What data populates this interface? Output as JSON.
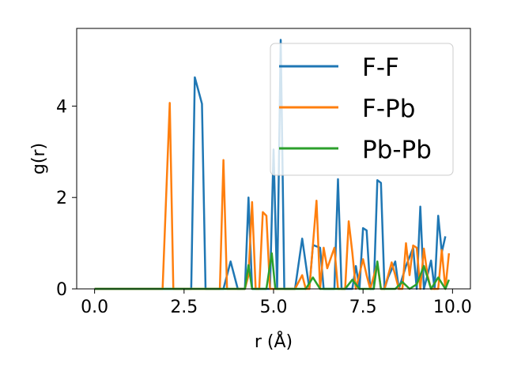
{
  "chart_data": {
    "type": "line",
    "title": "",
    "xlabel": "r (Å)",
    "ylabel": "g(r)",
    "xlim": [
      -0.5,
      10.5
    ],
    "ylim": [
      0,
      5.7
    ],
    "xticks": [
      0.0,
      2.5,
      5.0,
      7.5,
      10.0
    ],
    "xtick_labels": [
      "0.0",
      "2.5",
      "5.0",
      "7.5",
      "10.0"
    ],
    "yticks": [
      0,
      2,
      4
    ],
    "ytick_labels": [
      "0",
      "2",
      "4"
    ],
    "grid": false,
    "legend": "top-right",
    "series": [
      {
        "name": "F-F",
        "color": "#1f77b4",
        "points": [
          [
            0.0,
            0
          ],
          [
            2.7,
            0
          ],
          [
            2.8,
            4.63
          ],
          [
            3.0,
            4.05
          ],
          [
            3.1,
            0
          ],
          [
            3.6,
            0
          ],
          [
            3.8,
            0.6
          ],
          [
            4.0,
            0
          ],
          [
            4.2,
            0
          ],
          [
            4.3,
            2.0
          ],
          [
            4.4,
            0
          ],
          [
            4.9,
            0
          ],
          [
            5.0,
            3.05
          ],
          [
            5.1,
            0
          ],
          [
            5.2,
            5.45
          ],
          [
            5.3,
            0
          ],
          [
            5.6,
            0
          ],
          [
            5.8,
            1.1
          ],
          [
            6.0,
            0
          ],
          [
            6.1,
            0.96
          ],
          [
            6.3,
            0.9
          ],
          [
            6.4,
            0
          ],
          [
            6.7,
            0
          ],
          [
            6.8,
            2.4
          ],
          [
            6.9,
            0
          ],
          [
            7.2,
            0
          ],
          [
            7.3,
            0.5
          ],
          [
            7.4,
            0
          ],
          [
            7.5,
            1.33
          ],
          [
            7.6,
            1.28
          ],
          [
            7.7,
            0
          ],
          [
            7.8,
            0
          ],
          [
            7.9,
            2.38
          ],
          [
            8.0,
            2.32
          ],
          [
            8.1,
            0
          ],
          [
            8.2,
            0.25
          ],
          [
            8.4,
            0.6
          ],
          [
            8.5,
            0
          ],
          [
            8.7,
            0.5
          ],
          [
            8.9,
            0.9
          ],
          [
            9.0,
            0
          ],
          [
            9.1,
            1.8
          ],
          [
            9.2,
            0
          ],
          [
            9.3,
            0.3
          ],
          [
            9.4,
            0.62
          ],
          [
            9.5,
            0
          ],
          [
            9.6,
            1.6
          ],
          [
            9.7,
            0.8
          ],
          [
            9.8,
            1.15
          ]
        ]
      },
      {
        "name": "F-Pb",
        "color": "#ff7f0e",
        "points": [
          [
            0.0,
            0
          ],
          [
            1.9,
            0
          ],
          [
            2.1,
            4.07
          ],
          [
            2.2,
            0
          ],
          [
            3.5,
            0
          ],
          [
            3.6,
            2.82
          ],
          [
            3.7,
            0
          ],
          [
            4.2,
            0
          ],
          [
            4.3,
            0.3
          ],
          [
            4.4,
            1.9
          ],
          [
            4.5,
            0
          ],
          [
            4.6,
            0
          ],
          [
            4.7,
            1.68
          ],
          [
            4.8,
            1.6
          ],
          [
            4.9,
            0
          ],
          [
            5.6,
            0
          ],
          [
            5.8,
            0.3
          ],
          [
            5.9,
            0
          ],
          [
            6.0,
            0
          ],
          [
            6.2,
            1.93
          ],
          [
            6.3,
            0
          ],
          [
            6.4,
            0.9
          ],
          [
            6.5,
            0.45
          ],
          [
            6.7,
            0.9
          ],
          [
            6.8,
            0
          ],
          [
            7.0,
            0
          ],
          [
            7.1,
            1.48
          ],
          [
            7.2,
            0.8
          ],
          [
            7.3,
            0
          ],
          [
            7.5,
            0.65
          ],
          [
            7.6,
            0.3
          ],
          [
            7.7,
            0
          ],
          [
            7.9,
            0.55
          ],
          [
            8.0,
            0
          ],
          [
            8.1,
            0
          ],
          [
            8.3,
            0.58
          ],
          [
            8.4,
            0.3
          ],
          [
            8.5,
            0
          ],
          [
            8.6,
            0
          ],
          [
            8.7,
            1.0
          ],
          [
            8.8,
            0.3
          ],
          [
            8.9,
            0.95
          ],
          [
            9.0,
            0.9
          ],
          [
            9.1,
            0
          ],
          [
            9.2,
            0.88
          ],
          [
            9.3,
            0.3
          ],
          [
            9.4,
            0
          ],
          [
            9.6,
            0
          ],
          [
            9.7,
            0.85
          ],
          [
            9.8,
            0
          ],
          [
            9.9,
            0.78
          ]
        ]
      },
      {
        "name": "Pb-Pb",
        "color": "#2ca02c",
        "points": [
          [
            0.0,
            0
          ],
          [
            4.2,
            0
          ],
          [
            4.3,
            0.52
          ],
          [
            4.4,
            0
          ],
          [
            4.8,
            0
          ],
          [
            4.95,
            0.78
          ],
          [
            5.05,
            0
          ],
          [
            5.9,
            0
          ],
          [
            6.1,
            0.25
          ],
          [
            6.3,
            0
          ],
          [
            7.0,
            0
          ],
          [
            7.2,
            0.2
          ],
          [
            7.4,
            0
          ],
          [
            7.8,
            0
          ],
          [
            7.9,
            0.6
          ],
          [
            8.0,
            0
          ],
          [
            8.4,
            0
          ],
          [
            8.6,
            0.15
          ],
          [
            8.8,
            0
          ],
          [
            9.0,
            0.1
          ],
          [
            9.2,
            0.5
          ],
          [
            9.4,
            0
          ],
          [
            9.6,
            0.25
          ],
          [
            9.8,
            0
          ],
          [
            9.9,
            0.2
          ]
        ]
      }
    ]
  }
}
